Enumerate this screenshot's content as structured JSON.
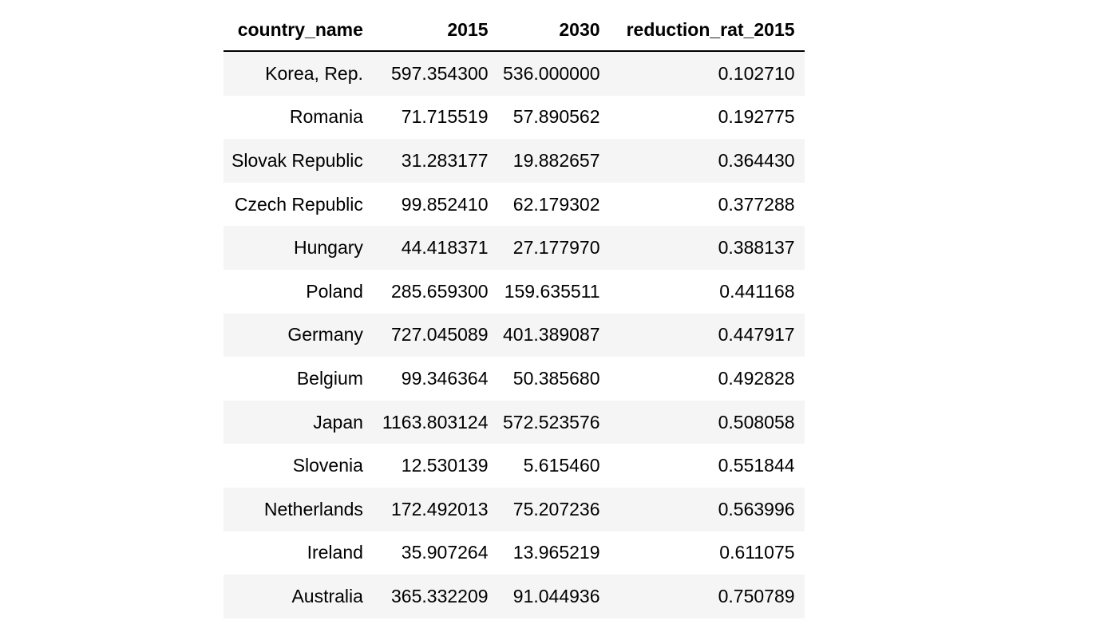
{
  "table": {
    "columns": [
      "country_name",
      "2015",
      "2030",
      "reduction_rat_2015"
    ],
    "rows": [
      [
        "Korea, Rep.",
        "597.354300",
        "536.000000",
        "0.102710"
      ],
      [
        "Romania",
        "71.715519",
        "57.890562",
        "0.192775"
      ],
      [
        "Slovak Republic",
        "31.283177",
        "19.882657",
        "0.364430"
      ],
      [
        "Czech Republic",
        "99.852410",
        "62.179302",
        "0.377288"
      ],
      [
        "Hungary",
        "44.418371",
        "27.177970",
        "0.388137"
      ],
      [
        "Poland",
        "285.659300",
        "159.635511",
        "0.441168"
      ],
      [
        "Germany",
        "727.045089",
        "401.389087",
        "0.447917"
      ],
      [
        "Belgium",
        "99.346364",
        "50.385680",
        "0.492828"
      ],
      [
        "Japan",
        "1163.803124",
        "572.523576",
        "0.508058"
      ],
      [
        "Slovenia",
        "12.530139",
        "5.615460",
        "0.551844"
      ],
      [
        "Netherlands",
        "172.492013",
        "75.207236",
        "0.563996"
      ],
      [
        "Ireland",
        "35.907264",
        "13.965219",
        "0.611075"
      ],
      [
        "Australia",
        "365.332209",
        "91.044936",
        "0.750789"
      ]
    ]
  }
}
